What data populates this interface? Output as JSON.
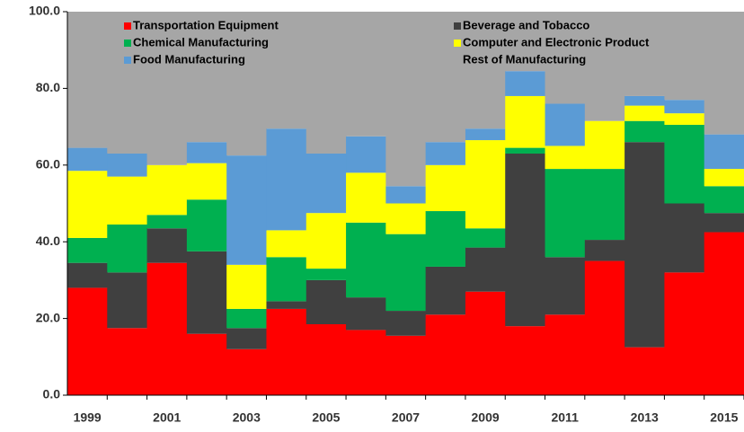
{
  "chart_data": {
    "type": "stacked_step_area",
    "categories": [
      "1999",
      null,
      "2001",
      null,
      "2003",
      null,
      "2005",
      null,
      "2007",
      null,
      "2009",
      null,
      "2011",
      null,
      "2013",
      null,
      "2015"
    ],
    "series": [
      {
        "name": "Transportation Equipment",
        "color": "#ff0000",
        "values": [
          28,
          17.5,
          34.5,
          16,
          12,
          22.5,
          18.5,
          17,
          15.5,
          21,
          27,
          18,
          21,
          35,
          12.5,
          32,
          42.5
        ]
      },
      {
        "name": "Beverage and Tobacco",
        "color": "#404040",
        "values": [
          6.5,
          14.5,
          9,
          21.5,
          5.5,
          2,
          11.5,
          8.5,
          6.5,
          12.5,
          11.5,
          45,
          15,
          5.5,
          53.5,
          18,
          5
        ]
      },
      {
        "name": "Chemical Manufacturing",
        "color": "#00b050",
        "values": [
          6.5,
          12.5,
          3.5,
          13.5,
          5,
          11.5,
          3,
          19.5,
          20,
          14.5,
          5,
          1.5,
          23,
          18.5,
          5.5,
          20.5,
          7
        ]
      },
      {
        "name": "Computer and Electronic Product",
        "color": "#ffff00",
        "values": [
          17.5,
          12.5,
          13,
          9.5,
          11.5,
          7,
          14.5,
          13,
          8,
          12,
          23,
          13.5,
          6,
          12.5,
          4,
          3,
          4.5
        ]
      },
      {
        "name": "Food Manufacturing",
        "color": "#5b9bd5",
        "values": [
          6,
          6,
          0,
          5.5,
          28.5,
          26.5,
          15.5,
          9.5,
          4.5,
          6,
          3,
          6.5,
          11,
          0,
          2.5,
          3.5,
          9
        ]
      },
      {
        "name": "Rest of Manufacturing",
        "color": "#a6a6a6",
        "values": [
          35.5,
          37,
          40,
          34,
          37.5,
          30.5,
          37,
          32.5,
          45.5,
          34,
          30.5,
          15.5,
          24,
          28.5,
          22,
          23,
          32
        ]
      }
    ],
    "ylim": [
      0,
      100
    ],
    "yticks": [
      {
        "value": 0,
        "label": "0.0"
      },
      {
        "value": 20,
        "label": "20.0"
      },
      {
        "value": 40,
        "label": "40.0"
      },
      {
        "value": 60,
        "label": "60.0"
      },
      {
        "value": 80,
        "label": "80.0"
      },
      {
        "value": 100,
        "label": "100.0"
      }
    ],
    "legend": "top"
  }
}
